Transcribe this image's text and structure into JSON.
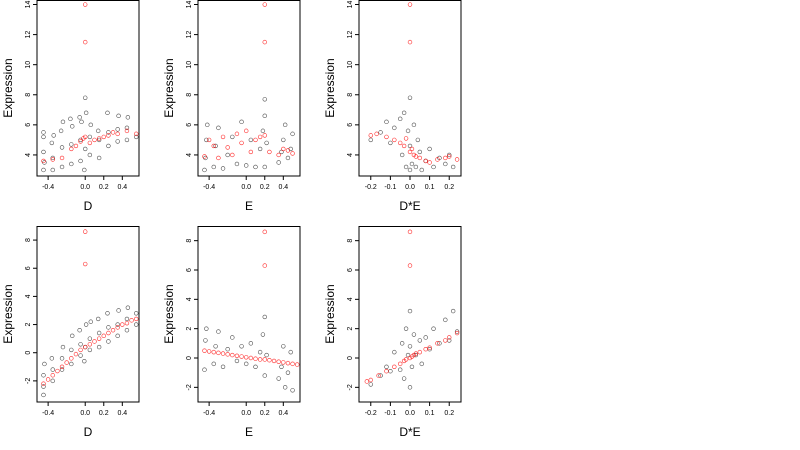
{
  "chart_data": [
    {
      "type": "scatter",
      "xlabel": "D",
      "ylabel": "Expression",
      "xlim": [
        -0.52,
        0.58
      ],
      "ylim": [
        2.6,
        14.3
      ],
      "xticks": [
        -0.4,
        0.0,
        0.2,
        0.4
      ],
      "xtick_labels": [
        "-0.4",
        "0.0",
        "0.2",
        "0.4"
      ],
      "yticks": [
        4,
        6,
        8,
        10,
        12,
        14
      ],
      "ytick_labels": [
        "4",
        "6",
        "8",
        "10",
        "12",
        "14"
      ],
      "x_levels": [
        -0.45,
        -0.35,
        -0.25,
        -0.15,
        -0.05,
        0.05,
        0.15,
        0.25,
        0.35,
        0.45,
        0.55
      ],
      "series": [
        {
          "color": "#000000",
          "values": {
            "x": [
              -0.45,
              -0.45,
              -0.45,
              -0.45,
              -0.44,
              -0.35,
              -0.35,
              -0.36,
              -0.34,
              -0.25,
              -0.25,
              -0.26,
              -0.24,
              -0.15,
              -0.15,
              -0.14,
              -0.16,
              -0.05,
              -0.05,
              -0.04,
              -0.06,
              -0.01,
              0.0,
              0.01,
              0.0,
              0.05,
              0.05,
              0.06,
              0.15,
              0.15,
              0.14,
              0.25,
              0.25,
              0.24,
              0.35,
              0.35,
              0.36,
              0.45,
              0.45,
              0.46,
              0.55
            ],
            "y": [
              3.0,
              4.2,
              5.2,
              5.5,
              3.5,
              3.0,
              3.8,
              4.8,
              5.3,
              3.2,
              4.5,
              5.6,
              6.2,
              3.4,
              4.7,
              5.9,
              6.4,
              3.6,
              5.0,
              6.2,
              6.5,
              3.0,
              4.4,
              6.8,
              7.8,
              4.0,
              5.2,
              6.0,
              3.8,
              5.0,
              5.6,
              4.6,
              5.5,
              6.8,
              4.9,
              5.7,
              6.6,
              5.0,
              5.8,
              6.5,
              5.2
            ]
          }
        },
        {
          "color": "#ff0000",
          "values": {
            "x": [
              -0.45,
              -0.35,
              -0.25,
              -0.15,
              -0.1,
              -0.05,
              -0.02,
              0.0,
              0.0,
              0.0,
              0.05,
              0.1,
              0.15,
              0.2,
              0.25,
              0.3,
              0.35,
              0.45,
              0.55
            ],
            "y": [
              3.6,
              3.7,
              3.8,
              4.4,
              4.6,
              4.9,
              5.1,
              11.5,
              14.0,
              5.2,
              4.8,
              5.0,
              5.1,
              5.2,
              5.3,
              5.5,
              5.4,
              5.6,
              5.4
            ]
          }
        }
      ]
    },
    {
      "type": "scatter",
      "xlabel": "E",
      "ylabel": "Expression",
      "xlim": [
        -0.52,
        0.58
      ],
      "ylim": [
        2.6,
        14.3
      ],
      "xticks": [
        -0.4,
        0.0,
        0.2,
        0.4
      ],
      "xtick_labels": [
        "-0.4",
        "0.0",
        "0.2",
        "0.4"
      ],
      "yticks": [
        4,
        6,
        8,
        10,
        12,
        14
      ],
      "ytick_labels": [
        "4",
        "6",
        "8",
        "10",
        "12",
        "14"
      ],
      "series": [
        {
          "color": "#000000",
          "values": {
            "x": [
              -0.45,
              -0.44,
              -0.43,
              -0.42,
              -0.35,
              -0.33,
              -0.3,
              -0.25,
              -0.2,
              -0.15,
              -0.1,
              -0.05,
              0.0,
              0.05,
              0.1,
              0.15,
              0.18,
              0.2,
              0.2,
              0.2,
              0.22,
              0.35,
              0.38,
              0.4,
              0.42,
              0.45,
              0.48,
              0.5
            ],
            "y": [
              3.0,
              3.8,
              5.0,
              6.0,
              3.2,
              4.6,
              5.8,
              3.1,
              4.0,
              5.2,
              3.4,
              6.2,
              3.3,
              5.0,
              3.2,
              4.4,
              5.6,
              6.6,
              7.7,
              3.2,
              4.8,
              3.5,
              4.2,
              5.0,
              6.0,
              3.8,
              4.4,
              5.4
            ]
          }
        },
        {
          "color": "#ff0000",
          "values": {
            "x": [
              -0.45,
              -0.4,
              -0.35,
              -0.3,
              -0.25,
              -0.2,
              -0.15,
              -0.1,
              -0.05,
              0.0,
              0.05,
              0.1,
              0.15,
              0.2,
              0.2,
              0.2,
              0.25,
              0.35,
              0.4,
              0.45,
              0.5
            ],
            "y": [
              3.9,
              5.0,
              4.6,
              3.8,
              5.2,
              4.5,
              4.0,
              5.4,
              4.8,
              5.6,
              4.2,
              5.0,
              5.2,
              11.5,
              14.0,
              5.3,
              4.2,
              4.0,
              4.4,
              4.3,
              4.1
            ]
          }
        }
      ]
    },
    {
      "type": "scatter",
      "xlabel": "D*E",
      "ylabel": "Expression",
      "xlim": [
        -0.26,
        0.26
      ],
      "ylim": [
        2.6,
        14.3
      ],
      "xticks": [
        -0.2,
        -0.1,
        0.0,
        0.1,
        0.2
      ],
      "xtick_labels": [
        "-0.2",
        "-0.1",
        "0.0",
        "0.1",
        "0.2"
      ],
      "yticks": [
        4,
        6,
        8,
        10,
        12,
        14
      ],
      "ytick_labels": [
        "4",
        "6",
        "8",
        "10",
        "12",
        "14"
      ],
      "series": [
        {
          "color": "#000000",
          "values": {
            "x": [
              -0.2,
              -0.15,
              -0.12,
              -0.1,
              -0.08,
              -0.05,
              -0.04,
              -0.03,
              -0.02,
              -0.01,
              0.0,
              0.0,
              0.0,
              0.01,
              0.02,
              0.03,
              0.04,
              0.05,
              0.06,
              0.08,
              0.1,
              0.12,
              0.15,
              0.18,
              0.2,
              0.22
            ],
            "y": [
              5.0,
              5.5,
              6.2,
              4.8,
              5.8,
              6.4,
              4.0,
              6.8,
              3.2,
              5.6,
              7.8,
              3.0,
              4.6,
              3.4,
              6.0,
              3.2,
              5.0,
              4.2,
              3.0,
              3.6,
              4.4,
              3.2,
              3.8,
              3.4,
              4.0,
              3.2
            ]
          }
        },
        {
          "color": "#ff0000",
          "values": {
            "x": [
              -0.2,
              -0.17,
              -0.12,
              -0.08,
              -0.05,
              -0.03,
              -0.02,
              0.0,
              0.0,
              0.0,
              0.01,
              0.02,
              0.03,
              0.05,
              0.08,
              0.1,
              0.14,
              0.18,
              0.2,
              0.24
            ],
            "y": [
              5.3,
              5.4,
              5.2,
              5.0,
              4.8,
              4.6,
              5.1,
              11.5,
              14.0,
              4.2,
              4.4,
              4.0,
              3.9,
              3.8,
              3.6,
              3.5,
              3.7,
              3.8,
              3.9,
              3.7
            ]
          }
        }
      ]
    },
    {
      "type": "scatter",
      "xlabel": "D",
      "ylabel": "Expression",
      "xlim": [
        -0.52,
        0.58
      ],
      "ylim": [
        -3.5,
        9.0
      ],
      "xticks": [
        -0.4,
        0.0,
        0.2,
        0.4
      ],
      "xtick_labels": [
        "-0.4",
        "0.0",
        "0.2",
        "0.4"
      ],
      "yticks": [
        -2,
        0,
        2,
        4,
        6,
        8
      ],
      "ytick_labels": [
        "-2",
        "0",
        "2",
        "4",
        "6",
        "8"
      ],
      "series": [
        {
          "color": "#000000",
          "values": {
            "x": [
              -0.45,
              -0.45,
              -0.45,
              -0.44,
              -0.35,
              -0.35,
              -0.36,
              -0.25,
              -0.25,
              -0.24,
              -0.15,
              -0.15,
              -0.14,
              -0.05,
              -0.05,
              -0.06,
              -0.01,
              0.0,
              0.01,
              0.05,
              0.05,
              0.06,
              0.15,
              0.15,
              0.14,
              0.25,
              0.25,
              0.24,
              0.35,
              0.35,
              0.36,
              0.45,
              0.45,
              0.46,
              0.55,
              0.55
            ],
            "y": [
              -3.0,
              -2.4,
              -1.6,
              -0.8,
              -2.0,
              -1.2,
              -0.4,
              -1.2,
              -0.4,
              0.4,
              -0.8,
              0.2,
              1.2,
              -0.2,
              0.6,
              1.6,
              -0.6,
              0.4,
              2.0,
              0.2,
              1.0,
              2.2,
              0.4,
              1.4,
              2.4,
              0.8,
              1.8,
              2.8,
              1.2,
              2.0,
              3.0,
              1.6,
              2.4,
              3.2,
              2.0,
              2.8
            ]
          }
        },
        {
          "color": "#ff0000",
          "values": {
            "x": [
              -0.45,
              -0.4,
              -0.35,
              -0.3,
              -0.25,
              -0.2,
              -0.15,
              -0.1,
              -0.05,
              0.0,
              0.0,
              0.0,
              0.05,
              0.1,
              0.15,
              0.2,
              0.25,
              0.3,
              0.35,
              0.4,
              0.45,
              0.5,
              0.55
            ],
            "y": [
              -2.2,
              -1.9,
              -1.6,
              -1.3,
              -1.0,
              -0.7,
              -0.4,
              -0.1,
              0.2,
              6.3,
              8.6,
              0.4,
              0.6,
              0.8,
              1.0,
              1.2,
              1.4,
              1.6,
              1.8,
              2.0,
              2.1,
              2.3,
              2.4
            ]
          }
        }
      ]
    },
    {
      "type": "scatter",
      "xlabel": "E",
      "ylabel": "Expression",
      "xlim": [
        -0.52,
        0.58
      ],
      "ylim": [
        -3.0,
        9.0
      ],
      "xticks": [
        -0.4,
        0.0,
        0.2,
        0.4
      ],
      "xtick_labels": [
        "-0.4",
        "0.0",
        "0.2",
        "0.4"
      ],
      "yticks": [
        -2,
        0,
        2,
        4,
        6,
        8
      ],
      "ytick_labels": [
        "-2",
        "0",
        "2",
        "4",
        "6",
        "8"
      ],
      "series": [
        {
          "color": "#000000",
          "values": {
            "x": [
              -0.45,
              -0.44,
              -0.43,
              -0.35,
              -0.33,
              -0.3,
              -0.25,
              -0.2,
              -0.15,
              -0.1,
              -0.05,
              0.0,
              0.05,
              0.1,
              0.15,
              0.18,
              0.2,
              0.2,
              0.22,
              0.35,
              0.38,
              0.4,
              0.42,
              0.45,
              0.48,
              0.5
            ],
            "y": [
              -0.8,
              1.2,
              2.0,
              -0.4,
              0.8,
              1.8,
              -0.6,
              0.6,
              1.4,
              -0.2,
              0.8,
              -0.4,
              1.0,
              -0.6,
              0.4,
              1.6,
              2.8,
              -1.2,
              0.2,
              -1.4,
              -0.6,
              0.8,
              -2.0,
              -1.0,
              0.4,
              -2.2
            ]
          }
        },
        {
          "color": "#ff0000",
          "values": {
            "x": [
              -0.45,
              -0.4,
              -0.35,
              -0.3,
              -0.25,
              -0.2,
              -0.15,
              -0.1,
              -0.05,
              0.0,
              0.05,
              0.1,
              0.15,
              0.2,
              0.2,
              0.2,
              0.25,
              0.3,
              0.35,
              0.4,
              0.45,
              0.5,
              0.55
            ],
            "y": [
              0.5,
              0.45,
              0.4,
              0.35,
              0.3,
              0.25,
              0.2,
              0.15,
              0.1,
              0.05,
              0.0,
              -0.05,
              -0.1,
              6.3,
              8.6,
              -0.1,
              -0.15,
              -0.2,
              -0.25,
              -0.3,
              -0.35,
              -0.4,
              -0.45
            ]
          }
        }
      ]
    },
    {
      "type": "scatter",
      "xlabel": "D*E",
      "ylabel": "Expression",
      "xlim": [
        -0.26,
        0.26
      ],
      "ylim": [
        -3.0,
        9.0
      ],
      "xticks": [
        -0.2,
        -0.1,
        0.0,
        0.1,
        0.2
      ],
      "xtick_labels": [
        "-0.2",
        "-0.1",
        "0.0",
        "0.1",
        "0.2"
      ],
      "yticks": [
        -2,
        0,
        2,
        4,
        6,
        8
      ],
      "ytick_labels": [
        "-2",
        "0",
        "2",
        "4",
        "6",
        "8"
      ],
      "series": [
        {
          "color": "#000000",
          "values": {
            "x": [
              -0.2,
              -0.15,
              -0.12,
              -0.1,
              -0.08,
              -0.05,
              -0.04,
              -0.03,
              -0.02,
              -0.01,
              0.0,
              0.0,
              0.0,
              0.01,
              0.02,
              0.03,
              0.05,
              0.06,
              0.08,
              0.1,
              0.12,
              0.15,
              0.18,
              0.2,
              0.22,
              0.24
            ],
            "y": [
              -1.8,
              -1.2,
              -0.6,
              -0.9,
              0.4,
              -0.8,
              1.0,
              -1.4,
              2.0,
              0.2,
              3.2,
              -2.0,
              0.8,
              -0.6,
              1.6,
              0.2,
              1.2,
              -0.4,
              1.4,
              0.6,
              2.0,
              1.0,
              2.6,
              1.2,
              3.2,
              1.8
            ]
          }
        },
        {
          "color": "#ff0000",
          "values": {
            "x": [
              -0.22,
              -0.2,
              -0.16,
              -0.12,
              -0.08,
              -0.05,
              -0.03,
              -0.02,
              0.0,
              0.0,
              0.0,
              0.01,
              0.02,
              0.03,
              0.05,
              0.08,
              0.1,
              0.14,
              0.18,
              0.2,
              0.24
            ],
            "y": [
              -1.6,
              -1.5,
              -1.2,
              -0.9,
              -0.6,
              -0.4,
              -0.2,
              -0.1,
              6.3,
              8.6,
              0.0,
              0.1,
              0.2,
              0.3,
              0.4,
              0.6,
              0.7,
              1.0,
              1.2,
              1.4,
              1.7
            ]
          }
        }
      ]
    }
  ]
}
